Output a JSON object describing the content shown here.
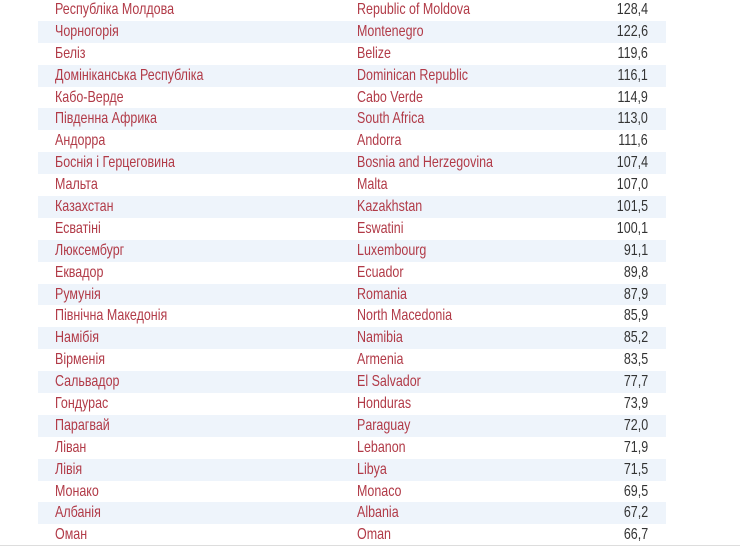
{
  "table": {
    "rows": [
      {
        "ua": "Республіка Молдова",
        "en": "Republic of Moldova",
        "value": "128,4"
      },
      {
        "ua": "Чорногорія",
        "en": "Montenegro",
        "value": "122,6"
      },
      {
        "ua": "Беліз",
        "en": "Belize",
        "value": "119,6"
      },
      {
        "ua": "Домініканська Республіка",
        "en": "Dominican Republic",
        "value": "116,1"
      },
      {
        "ua": "Кабо-Верде",
        "en": "Cabo Verde",
        "value": "114,9"
      },
      {
        "ua": "Південна Африка",
        "en": "South Africa",
        "value": "113,0"
      },
      {
        "ua": "Андорра",
        "en": "Andorra",
        "value": "111,6"
      },
      {
        "ua": "Боснія і Герцеговина",
        "en": "Bosnia and Herzegovina",
        "value": "107,4"
      },
      {
        "ua": "Мальта",
        "en": "Malta",
        "value": "107,0"
      },
      {
        "ua": "Казахстан",
        "en": "Kazakhstan",
        "value": "101,5"
      },
      {
        "ua": "Есватіні",
        "en": "Eswatini",
        "value": "100,1"
      },
      {
        "ua": "Люксембург",
        "en": "Luxembourg",
        "value": "91,1"
      },
      {
        "ua": "Еквадор",
        "en": "Ecuador",
        "value": "89,8"
      },
      {
        "ua": "Румунія",
        "en": "Romania",
        "value": "87,9"
      },
      {
        "ua": "Північна Македонія",
        "en": "North Macedonia",
        "value": "85,9"
      },
      {
        "ua": "Намібія",
        "en": "Namibia",
        "value": "85,2"
      },
      {
        "ua": "Вірменія",
        "en": "Armenia",
        "value": "83,5"
      },
      {
        "ua": "Сальвадор",
        "en": "El Salvador",
        "value": "77,7"
      },
      {
        "ua": "Гондурас",
        "en": "Honduras",
        "value": "73,9"
      },
      {
        "ua": "Парагвай",
        "en": "Paraguay",
        "value": "72,0"
      },
      {
        "ua": "Ліван",
        "en": "Lebanon",
        "value": "71,9"
      },
      {
        "ua": "Лівія",
        "en": "Libya",
        "value": "71,5"
      },
      {
        "ua": "Монако",
        "en": "Monaco",
        "value": "69,5"
      },
      {
        "ua": "Албанія",
        "en": "Albania",
        "value": "67,2"
      },
      {
        "ua": "Оман",
        "en": "Oman",
        "value": "66,7"
      }
    ]
  },
  "colors": {
    "name_text": "#b13a47",
    "value_text": "#333333",
    "stripe": "#eef4fb"
  }
}
